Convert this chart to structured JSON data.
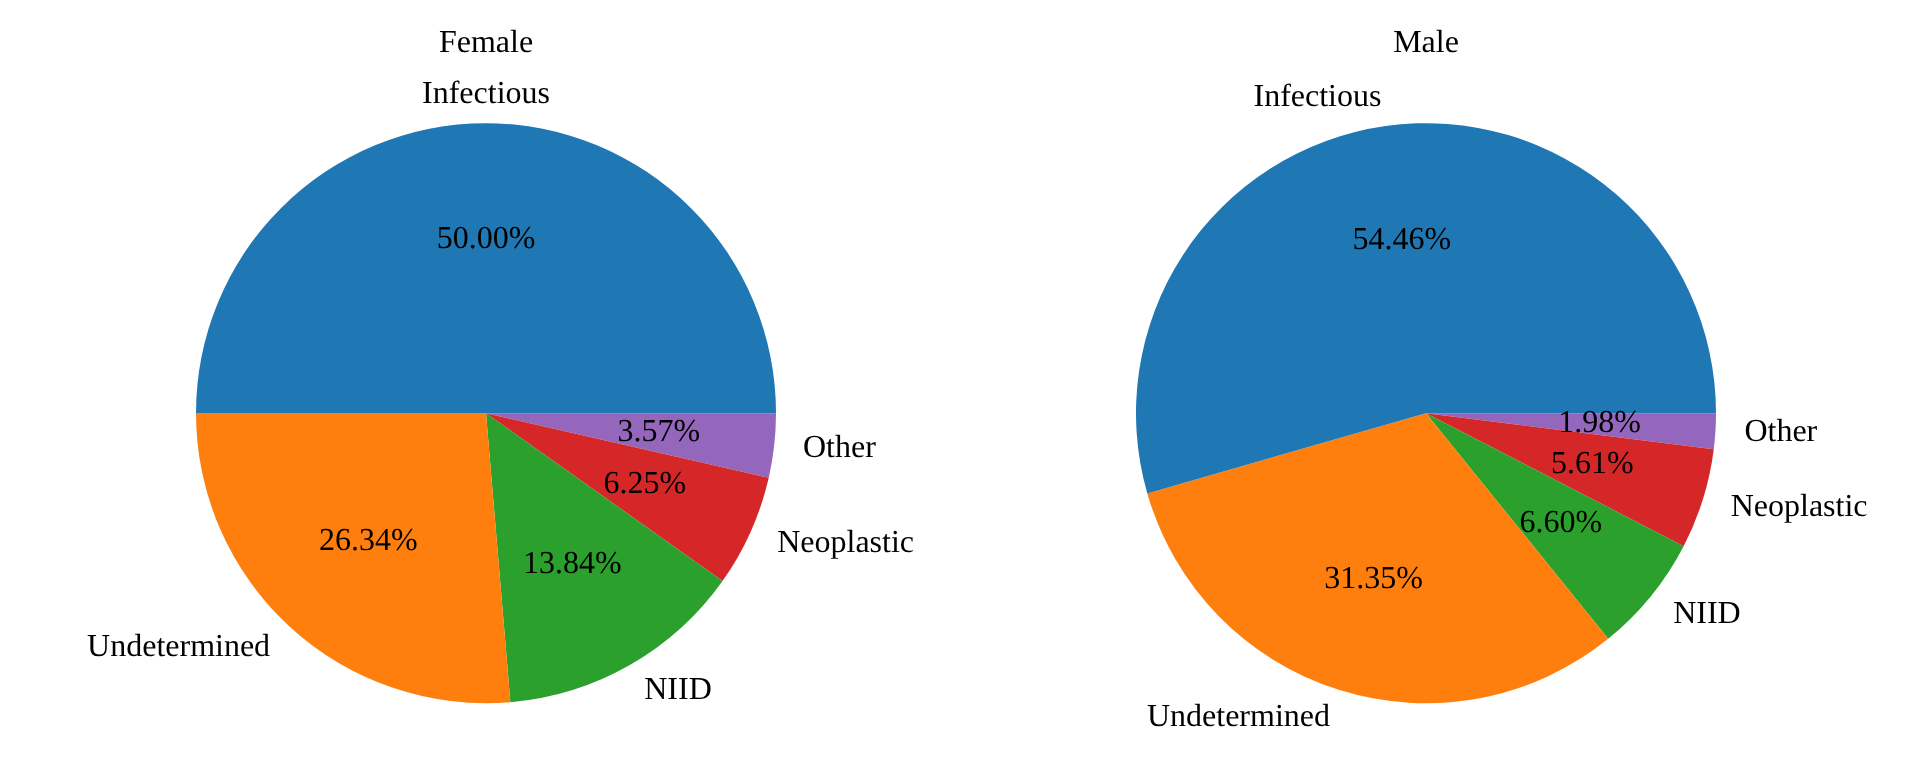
{
  "chart_data": [
    {
      "type": "pie",
      "title": "Female",
      "categories": [
        "Infectious",
        "Undetermined",
        "NIID",
        "Neoplastic",
        "Other"
      ],
      "values": [
        50.0,
        26.34,
        13.84,
        6.25,
        3.57
      ],
      "value_labels": [
        "50.00%",
        "26.34%",
        "13.84%",
        "6.25%",
        "3.57%"
      ],
      "colors": [
        "#1f77b4",
        "#ff7f0e",
        "#2ca02c",
        "#d62728",
        "#9467bd"
      ],
      "legend": false
    },
    {
      "type": "pie",
      "title": "Male",
      "categories": [
        "Infectious",
        "Undetermined",
        "NIID",
        "Neoplastic",
        "Other"
      ],
      "values": [
        54.46,
        31.35,
        6.6,
        5.61,
        1.98
      ],
      "value_labels": [
        "54.46%",
        "31.35%",
        "6.60%",
        "5.61%",
        "1.98%"
      ],
      "colors": [
        "#1f77b4",
        "#ff7f0e",
        "#2ca02c",
        "#d62728",
        "#9467bd"
      ],
      "legend": false
    }
  ]
}
